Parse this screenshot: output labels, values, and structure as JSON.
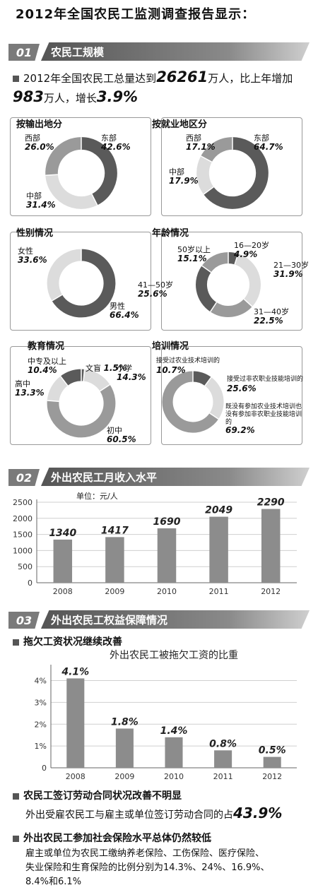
{
  "title": "2012年全国农民工监测调查报告显示：",
  "sections": [
    {
      "num": "01",
      "title": "农民工规模"
    },
    {
      "num": "02",
      "title": "外出农民工月收入水平"
    },
    {
      "num": "03",
      "title": "外出农民工权益保障情况"
    }
  ],
  "summary": {
    "prefix": "2012年全国农民工总量达到",
    "total": "26261",
    "mid": "万人，比上年增加",
    "increase": "983",
    "mid2": "万人，增长",
    "growth": "3.9%"
  },
  "colors": {
    "dark": "#5a5a5a",
    "mid": "#9a9a9a",
    "light": "#dcdcdc",
    "bar": "#8c8c8c"
  },
  "chart_data": [
    {
      "type": "pie",
      "title": "按输出地分",
      "slices": [
        {
          "label": "东部",
          "pct": "42.6%",
          "value": 42.6,
          "shade": "dark"
        },
        {
          "label": "中部",
          "pct": "31.4%",
          "value": 31.4,
          "shade": "light"
        },
        {
          "label": "西部",
          "pct": "26.0%",
          "value": 26.0,
          "shade": "mid"
        }
      ]
    },
    {
      "type": "pie",
      "title": "按就业地区分",
      "slices": [
        {
          "label": "东部",
          "pct": "64.7%",
          "value": 64.7,
          "shade": "dark"
        },
        {
          "label": "中部",
          "pct": "17.9%",
          "value": 17.9,
          "shade": "light"
        },
        {
          "label": "西部",
          "pct": "17.1%",
          "value": 17.1,
          "shade": "mid"
        }
      ]
    },
    {
      "type": "pie",
      "title": "性别情况",
      "slices": [
        {
          "label": "男性",
          "pct": "66.4%",
          "value": 66.4,
          "shade": "dark"
        },
        {
          "label": "女性",
          "pct": "33.6%",
          "value": 33.6,
          "shade": "light"
        }
      ]
    },
    {
      "type": "pie",
      "title": "年龄情况",
      "slices": [
        {
          "label": "16—20岁",
          "pct": "4.9%",
          "value": 4.9,
          "shade": "dark"
        },
        {
          "label": "21—30岁",
          "pct": "31.9%",
          "value": 31.9,
          "shade": "light"
        },
        {
          "label": "31—40岁",
          "pct": "22.5%",
          "value": 22.5,
          "shade": "mid"
        },
        {
          "label": "41—50岁",
          "pct": "25.6%",
          "value": 25.6,
          "shade": "dark"
        },
        {
          "label": "50岁以上",
          "pct": "15.1%",
          "value": 15.1,
          "shade": "mid"
        }
      ]
    },
    {
      "type": "pie",
      "title": "教育情况",
      "slices": [
        {
          "label": "文盲",
          "pct": "1.5%",
          "value": 1.5,
          "shade": "dark"
        },
        {
          "label": "小学",
          "pct": "14.3%",
          "value": 14.3,
          "shade": "light"
        },
        {
          "label": "初中",
          "pct": "60.5%",
          "value": 60.5,
          "shade": "mid"
        },
        {
          "label": "高中",
          "pct": "13.3%",
          "value": 13.3,
          "shade": "light"
        },
        {
          "label": "中专及以上",
          "pct": "10.4%",
          "value": 10.4,
          "shade": "dark"
        }
      ]
    },
    {
      "type": "pie",
      "title": "培训情况",
      "slices": [
        {
          "label": "接受过农业技术培训的",
          "pct": "10.7%",
          "value": 10.7,
          "shade": "dark"
        },
        {
          "label": "接受过非农职业技能培训的",
          "pct": "25.6%",
          "value": 25.6,
          "shade": "light"
        },
        {
          "label": "既没有参加农业技术培训也没有参加非农职业技能培训的",
          "pct": "69.2%",
          "value": 69.2,
          "shade": "mid"
        }
      ]
    },
    {
      "type": "bar",
      "unit": "单位：元/人",
      "categories": [
        "2008",
        "2009",
        "2010",
        "2011",
        "2012"
      ],
      "values": [
        1340,
        1417,
        1690,
        2049,
        2290
      ],
      "value_labels": [
        "1340",
        "1417",
        "1690",
        "2049",
        "2290"
      ],
      "yticks": [
        "0",
        "500",
        "1000",
        "1500",
        "2000",
        "2500"
      ],
      "ylim": [
        0,
        2500
      ]
    },
    {
      "type": "bar",
      "title": "外出农民工被拖欠工资的比重",
      "categories": [
        "2008",
        "2009",
        "2010",
        "2011",
        "2012"
      ],
      "values": [
        4.1,
        1.8,
        1.4,
        0.8,
        0.5
      ],
      "value_labels": [
        "4.1%",
        "1.8%",
        "1.4%",
        "0.8%",
        "0.5%"
      ],
      "yticks": [
        "0",
        "1%",
        "2%",
        "3%",
        "4%"
      ],
      "ylim": [
        0,
        4.6
      ]
    }
  ],
  "rights": {
    "h1": "拖欠工资状况继续改善",
    "h2": "农民工签订劳动合同状况改善不明显",
    "contract_text": "外出受雇农民工与雇主或单位签订劳动合同的占",
    "contract_pct": "43.9%",
    "h3": "外出农民工参加社会保险水平总体仍然较低",
    "ins_line1": "雇主或单位为农民工缴纳养老保险、工伤保险、医疗保险、",
    "ins_line2": "失业保险和生育保险的比例分别为14.3%、24%、16.9%、",
    "ins_line3": "8.4%和6.1%"
  }
}
